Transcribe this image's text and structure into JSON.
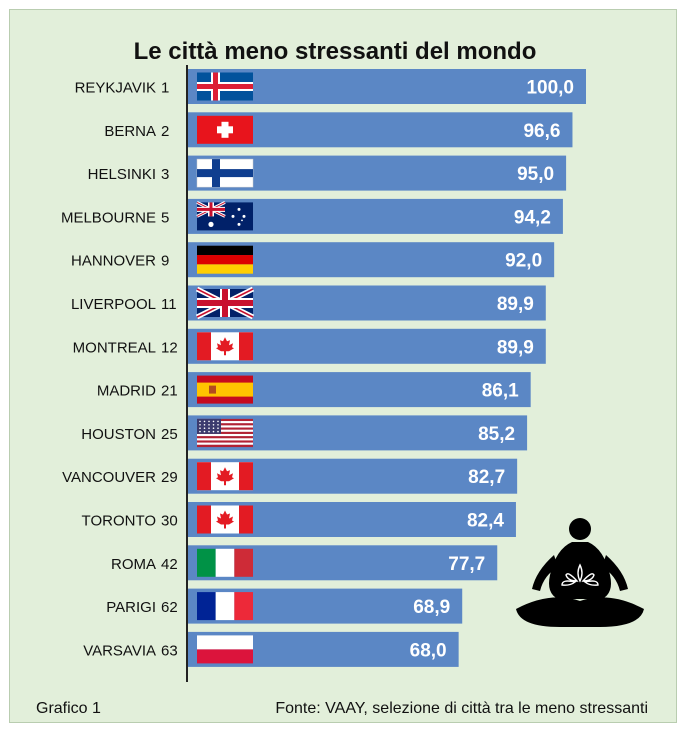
{
  "chart_data": {
    "type": "bar",
    "orientation": "horizontal",
    "title": "Le città meno stressanti del mondo",
    "categories": [
      "REYKJAVIK",
      "BERNA",
      "HELSINKI",
      "MELBOURNE",
      "HANNOVER",
      "LIVERPOOL",
      "MONTREAL",
      "MADRID",
      "HOUSTON",
      "VANCOUVER",
      "TORONTO",
      "ROMA",
      "PARIGI",
      "VARSAVIA"
    ],
    "ranks": [
      "1",
      "2",
      "3",
      "5",
      "9",
      "11",
      "12",
      "21",
      "25",
      "29",
      "30",
      "42",
      "62",
      "63"
    ],
    "flags": [
      "flag-iceland",
      "flag-switzerland",
      "flag-finland",
      "flag-australia",
      "flag-germany",
      "flag-uk",
      "flag-canada",
      "flag-spain",
      "flag-usa",
      "flag-canada",
      "flag-canada",
      "flag-italy",
      "flag-france",
      "flag-poland"
    ],
    "values": [
      100.0,
      96.6,
      95.0,
      94.2,
      92.0,
      89.9,
      89.9,
      86.1,
      85.2,
      82.7,
      82.4,
      77.7,
      68.9,
      68.0
    ],
    "value_labels": [
      "100,0",
      "96,6",
      "95,0",
      "94,2",
      "92,0",
      "89,9",
      "89,9",
      "86,1",
      "85,2",
      "82,7",
      "82,4",
      "77,7",
      "68,9",
      "68,0"
    ],
    "xlim": [
      0,
      100
    ],
    "grid": false,
    "legend": "none",
    "bar_color": "#5b87c5",
    "background_color": "#e2efda",
    "decoration": "meditation-icon"
  },
  "footer": {
    "caption": "Grafico 1",
    "source": "Fonte: VAAY, selezione di città tra le meno stressanti"
  }
}
